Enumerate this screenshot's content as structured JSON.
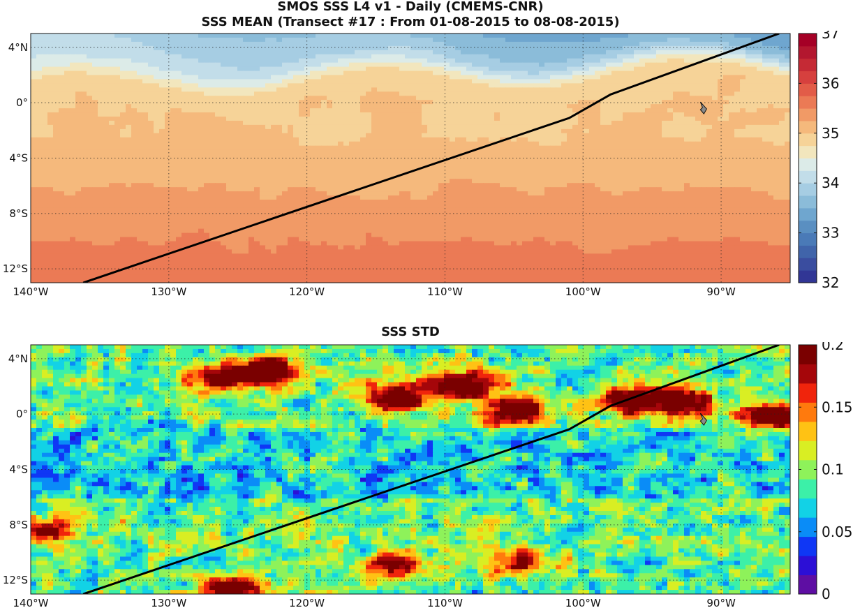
{
  "figure": {
    "title_line1": "SMOS SSS L4 v1 - Daily (CMEMS-CNR)",
    "title_line2": "SSS MEAN (Transect #17 : From 01-08-2015 to 08-08-2015)",
    "bottom_title": "SSS STD"
  },
  "axes": {
    "lon_range": [
      -140,
      -85
    ],
    "lat_range": [
      -13,
      5
    ],
    "lon_ticks": [
      {
        "value": -140,
        "label": "140°W"
      },
      {
        "value": -130,
        "label": "130°W"
      },
      {
        "value": -120,
        "label": "120°W"
      },
      {
        "value": -110,
        "label": "110°W"
      },
      {
        "value": -100,
        "label": "100°W"
      },
      {
        "value": -90,
        "label": "90°W"
      }
    ],
    "lat_ticks": [
      {
        "value": 4,
        "label": "4°N"
      },
      {
        "value": 0,
        "label": "0°"
      },
      {
        "value": -4,
        "label": "4°S"
      },
      {
        "value": -8,
        "label": "8°S"
      },
      {
        "value": -12,
        "label": "12°S"
      }
    ]
  },
  "transect": {
    "points": [
      [
        -136.2,
        -13
      ],
      [
        -101,
        -1.1
      ],
      [
        -98,
        0.6
      ],
      [
        -85.8,
        5
      ]
    ],
    "color": "#000000"
  },
  "land_marker": {
    "lon": -91.3,
    "lat": -0.4,
    "color": "#8a8a8a"
  },
  "top_map": {
    "colorbar": {
      "min": 32,
      "max": 37,
      "ticks": [
        {
          "value": 37,
          "label": "37"
        },
        {
          "value": 36,
          "label": "36"
        },
        {
          "value": 35,
          "label": "35"
        },
        {
          "value": 34,
          "label": "34"
        },
        {
          "value": 33,
          "label": "33"
        },
        {
          "value": 32,
          "label": "32"
        }
      ],
      "colors": [
        "#313695",
        "#3a4d9f",
        "#4064aa",
        "#4a7ab7",
        "#5a8fc1",
        "#6fa6cf",
        "#8bbcd9",
        "#a6cde3",
        "#c2dde9",
        "#dcebe8",
        "#f2e6bd",
        "#f6d398",
        "#f5b97c",
        "#f19a66",
        "#eb7a55",
        "#e25c48",
        "#d6403e",
        "#c52a35",
        "#b3172f",
        "#a50026"
      ]
    },
    "fields": {
      "south_gradient": [
        35.0,
        35.6
      ],
      "north_fresh_pool": 33.0
    }
  },
  "bottom_map": {
    "colorbar": {
      "min": 0,
      "max": 0.2,
      "ticks": [
        {
          "value": 0.2,
          "label": "0.2"
        },
        {
          "value": 0.15,
          "label": "0.15"
        },
        {
          "value": 0.1,
          "label": "0.1"
        },
        {
          "value": 0.05,
          "label": "0.05"
        },
        {
          "value": 0,
          "label": "0"
        }
      ],
      "colors": [
        "#5e0ea3",
        "#2c0fd6",
        "#0f37f5",
        "#0a8cf7",
        "#12d2e6",
        "#3cf0a8",
        "#8ef25a",
        "#d9ee23",
        "#ffc214",
        "#ff7a0d",
        "#f0240c",
        "#a5060a",
        "#7a0000"
      ]
    },
    "highlights": [
      {
        "lon": -113.3,
        "lat": 1.2,
        "value": 0.2
      },
      {
        "lon": -108.5,
        "lat": 2.1,
        "value": 0.2
      },
      {
        "lon": -105.0,
        "lat": 0.2,
        "value": 0.2
      },
      {
        "lon": -96.5,
        "lat": 1.0,
        "value": 0.19
      },
      {
        "lon": -92.8,
        "lat": 0.8,
        "value": 0.18
      },
      {
        "lon": -86.5,
        "lat": -0.1,
        "value": 0.2
      },
      {
        "lon": -126.6,
        "lat": 2.7,
        "value": 0.17
      },
      {
        "lon": -122.6,
        "lat": 3.1,
        "value": 0.2
      },
      {
        "lon": -139.2,
        "lat": -8.5,
        "value": 0.16
      },
      {
        "lon": -125.5,
        "lat": -12.8,
        "value": 0.2
      },
      {
        "lon": -113.8,
        "lat": -11.0,
        "value": 0.16
      },
      {
        "lon": -104.8,
        "lat": -10.7,
        "value": 0.15
      }
    ]
  }
}
